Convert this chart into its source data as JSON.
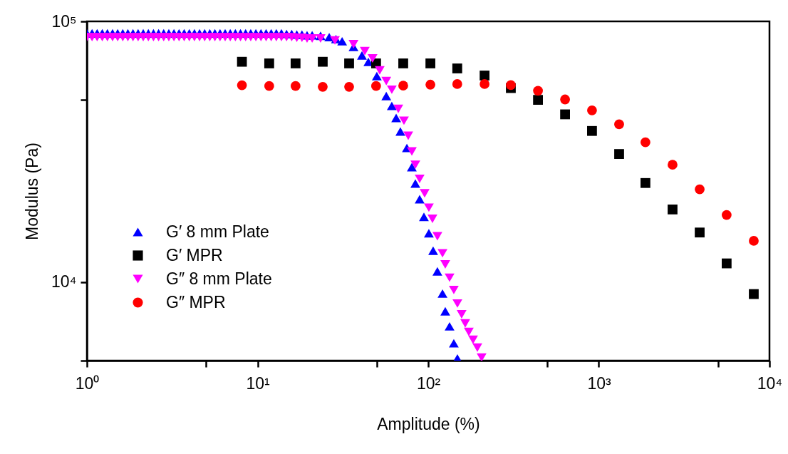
{
  "chart_data": {
    "type": "scatter",
    "xlabel": "Amplitude (%)",
    "ylabel": "Modulus (Pa)",
    "log": "xy",
    "grid": false,
    "legend": "left",
    "xlim": [
      1,
      10000
    ],
    "ylim": [
      5000,
      100000
    ],
    "xticks": [
      {
        "value": 1,
        "label": "10⁰"
      },
      {
        "value": 5,
        "label": null
      },
      {
        "value": 10,
        "label": "10¹"
      },
      {
        "value": 50,
        "label": null
      },
      {
        "value": 100,
        "label": "10²"
      },
      {
        "value": 500,
        "label": null
      },
      {
        "value": 1000,
        "label": "10³"
      },
      {
        "value": 5000,
        "label": null
      },
      {
        "value": 10000,
        "label": "10⁴"
      }
    ],
    "yticks": [
      {
        "value": 100000,
        "label": "10⁵"
      },
      {
        "value": 50000,
        "label": null
      },
      {
        "value": 10000,
        "label": "10⁴"
      },
      {
        "value": 5000,
        "label": null
      }
    ],
    "series": [
      {
        "name": "G′ 8 mm Plate",
        "color": "#0000ff",
        "marker": "triangle",
        "x": [
          1,
          1.072,
          1.148,
          1.23,
          1.318,
          1.413,
          1.514,
          1.622,
          1.738,
          1.862,
          1.995,
          2.138,
          2.291,
          2.455,
          2.63,
          2.818,
          3.02,
          3.236,
          3.467,
          3.715,
          3.981,
          4.266,
          4.571,
          4.898,
          5.248,
          5.623,
          6.026,
          6.457,
          6.918,
          7.413,
          7.943,
          8.511,
          9.12,
          9.772,
          10.47,
          11.22,
          12.02,
          12.88,
          13.8,
          14.79,
          15.85,
          16.98,
          18.2,
          19.5,
          20.89,
          23.4,
          26.3,
          28.8,
          31.3,
          36.5,
          40.9,
          44.6,
          50,
          56.8,
          61.2,
          64.9,
          68.7,
          75,
          80.2,
          84.1,
          89.1,
          94.4,
          100.9,
          106.9,
          113.2,
          121.3,
          125.9,
          133.4,
          141.3,
          148.3
        ],
        "values": [
          90000,
          90000,
          90000,
          90000,
          90000,
          90000,
          90000,
          90000,
          90000,
          90000,
          90000,
          90000,
          90000,
          90000,
          90000,
          90000,
          90000,
          90000,
          90000,
          90000,
          90000,
          90000,
          90000,
          90000,
          90000,
          90000,
          90000,
          90000,
          90000,
          90000,
          90000,
          90000,
          90000,
          90000,
          90000,
          90000,
          90000,
          90000,
          90000,
          89500,
          89500,
          89000,
          89000,
          88500,
          88500,
          88000,
          87000,
          85500,
          83900,
          79800,
          74000,
          69900,
          61700,
          51700,
          47400,
          42600,
          37800,
          32700,
          27600,
          23900,
          20800,
          17800,
          15400,
          13200,
          11000,
          9040,
          7730,
          6770,
          5830,
          5100
        ]
      },
      {
        "name": "G′ MPR",
        "color": "#000000",
        "marker": "square",
        "x": [
          8.1,
          11.7,
          16.7,
          24.1,
          34.4,
          49.5,
          71.4,
          103,
          148,
          214,
          305,
          440,
          634,
          912,
          1315,
          1875,
          2704,
          3899,
          5610,
          8091
        ],
        "values": [
          70000,
          69000,
          69000,
          70000,
          69000,
          69000,
          69000,
          69000,
          66000,
          62000,
          55500,
          50000,
          44000,
          38000,
          31000,
          24000,
          19000,
          15500,
          11800,
          9000
        ]
      },
      {
        "name": "G″ 8 mm Plate",
        "color": "#ff00ff",
        "marker": "triangle-down",
        "x": [
          1,
          1.072,
          1.148,
          1.23,
          1.318,
          1.413,
          1.514,
          1.622,
          1.738,
          1.862,
          1.995,
          2.138,
          2.291,
          2.455,
          2.63,
          2.818,
          3.02,
          3.236,
          3.467,
          3.715,
          3.981,
          4.266,
          4.571,
          4.898,
          5.248,
          5.623,
          6.026,
          6.457,
          6.918,
          7.413,
          7.943,
          8.511,
          9.12,
          9.772,
          10.47,
          11.22,
          12.02,
          12.88,
          13.8,
          14.79,
          15.85,
          16.98,
          18.2,
          19.5,
          20.89,
          23.4,
          28.4,
          36.5,
          42.5,
          47.2,
          52,
          56.8,
          61.2,
          66.8,
          72.1,
          76.4,
          80.2,
          84.1,
          89.1,
          95.3,
          100.9,
          105.9,
          113.2,
          121.3,
          125.9,
          133.4,
          141.3,
          148.3,
          157,
          164.8,
          173,
          183.2,
          194.1,
          205.6
        ],
        "values": [
          87000,
          87000,
          87000,
          87000,
          87000,
          87000,
          87000,
          87000,
          87000,
          87000,
          87000,
          87000,
          87000,
          87000,
          87000,
          87000,
          87000,
          87000,
          87000,
          87000,
          87000,
          87000,
          87000,
          87000,
          87000,
          87000,
          87000,
          87000,
          87000,
          87000,
          87000,
          87000,
          87000,
          87000,
          87000,
          87000,
          87000,
          87000,
          87000,
          87000,
          87000,
          86500,
          86500,
          86000,
          86000,
          86000,
          84500,
          81800,
          76900,
          72100,
          64900,
          59000,
          54700,
          46200,
          41600,
          36400,
          31700,
          28200,
          24900,
          21900,
          19300,
          17500,
          15000,
          12900,
          11700,
          10400,
          9330,
          8280,
          7530,
          6950,
          6440,
          6010,
          5610,
          5140
        ]
      },
      {
        "name": "G″ MPR",
        "color": "#ff0000",
        "marker": "circle",
        "x": [
          8.1,
          11.7,
          16.7,
          24.1,
          34.4,
          49.5,
          71.4,
          103,
          148,
          214,
          305,
          440,
          634,
          912,
          1315,
          1875,
          2704,
          3899,
          5610,
          8091
        ],
        "values": [
          56900,
          56500,
          56500,
          56100,
          56100,
          56500,
          56700,
          57200,
          57500,
          57500,
          57000,
          54200,
          50200,
          45600,
          40300,
          34400,
          28200,
          22700,
          18100,
          14400
        ]
      }
    ]
  }
}
